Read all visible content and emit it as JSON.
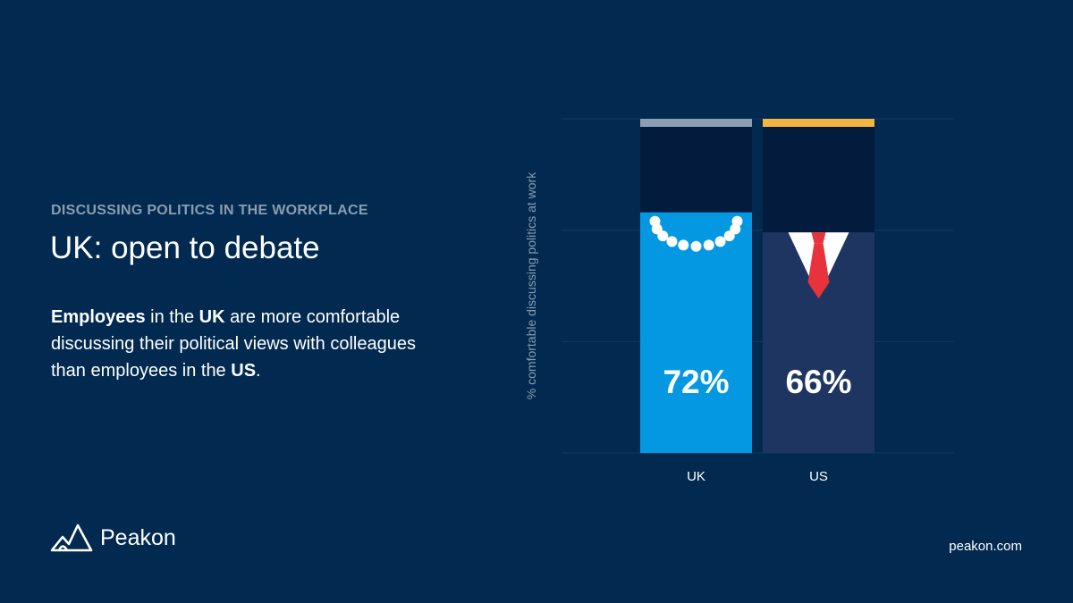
{
  "header": {
    "eyebrow": "DISCUSSING POLITICS IN THE WORKPLACE",
    "title": "UK: open to debate"
  },
  "body": {
    "w1": "Employees",
    "t1": " in the ",
    "w2": "UK",
    "t2": " are more comfortable discussing their political views with colleagues than employees in the ",
    "w3": "US",
    "t3": "."
  },
  "brand": {
    "name": "Peakon",
    "website": "peakon.com"
  },
  "chart_data": {
    "type": "bar",
    "categories": [
      "UK",
      "US"
    ],
    "values": [
      72,
      66
    ],
    "value_labels": [
      "72%",
      "66%"
    ],
    "ylabel": "% comfortable discussing politics at work",
    "ylim": [
      0,
      100
    ],
    "grid": true,
    "colors": {
      "UK": "#0498e3",
      "US": "#1d3560",
      "UK_cap": "#8d9db3",
      "US_cap": "#f8b53d",
      "remainder": "#031c3d",
      "grid": "#0f3a63"
    }
  }
}
